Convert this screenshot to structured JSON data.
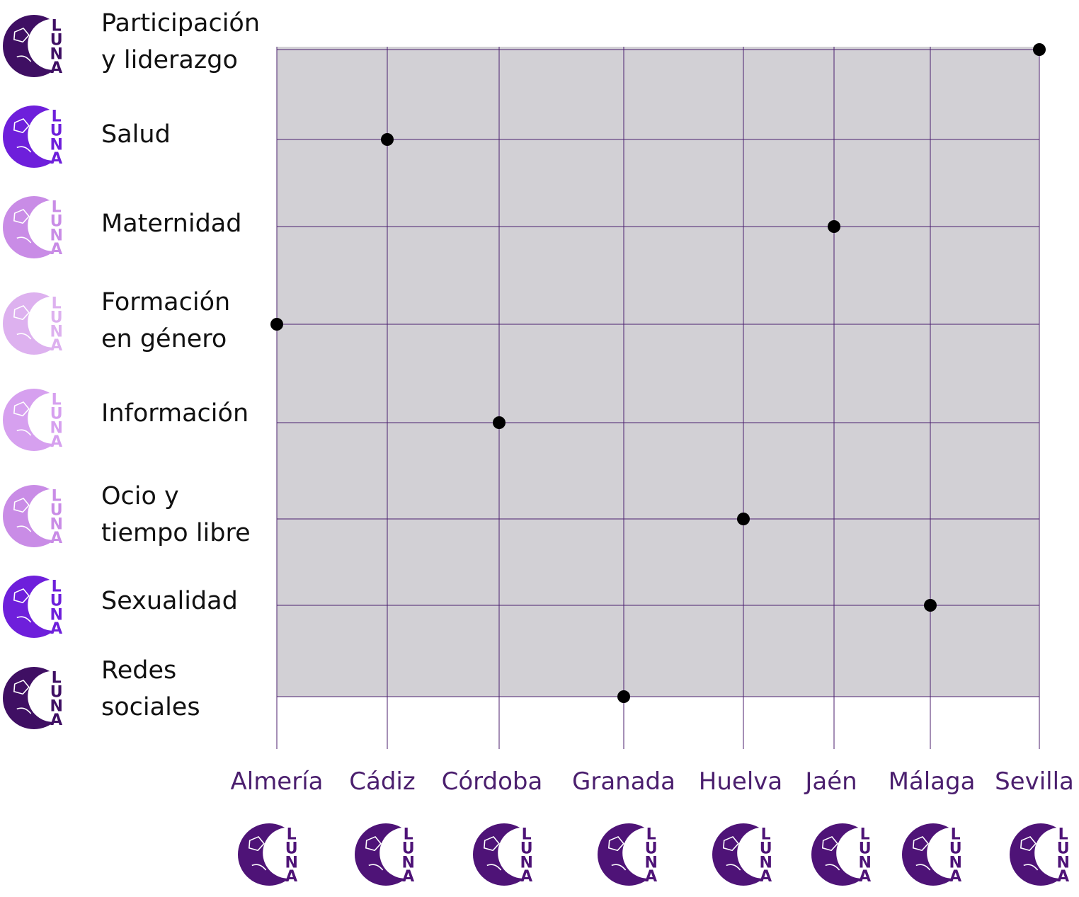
{
  "chart_data": {
    "type": "scatter",
    "title": "",
    "xlabel": "",
    "ylabel": "",
    "x_categories": [
      "Almería",
      "Cádiz",
      "Córdoba",
      "Granada",
      "Huelva",
      "Jaén",
      "Málaga",
      "Sevilla"
    ],
    "y_categories": [
      [
        "Participación",
        "y liderazgo"
      ],
      [
        "Salud"
      ],
      [
        "Maternidad"
      ],
      [
        "Formación",
        "en género"
      ],
      [
        "Información"
      ],
      [
        "Ocio y",
        "tiempo libre"
      ],
      [
        "Sexualidad"
      ],
      [
        "Redes",
        "sociales"
      ]
    ],
    "points": [
      {
        "x": "Sevilla",
        "y": "Participación y liderazgo"
      },
      {
        "x": "Cádiz",
        "y": "Salud"
      },
      {
        "x": "Jaén",
        "y": "Maternidad"
      },
      {
        "x": "Almería",
        "y": "Formación en género"
      },
      {
        "x": "Córdoba",
        "y": "Información"
      },
      {
        "x": "Huelva",
        "y": "Ocio y tiempo libre"
      },
      {
        "x": "Málaga",
        "y": "Sexualidad"
      },
      {
        "x": "Granada",
        "y": "Redes sociales"
      }
    ],
    "grid": true,
    "legend": "none"
  },
  "logo": {
    "letters": [
      "L",
      "U",
      "N",
      "A"
    ]
  },
  "colors": {
    "plot_bg": "#d2d0d5",
    "grid": "#4b1f6e",
    "point": "#000000",
    "column_label": "#4b1f6e",
    "row_logo_colors": [
      "#3f0f63",
      "#6e1fdb",
      "#c98ce6",
      "#ddb1ef",
      "#d6a0ef",
      "#c98ce6",
      "#6e1fdb",
      "#3f0f63"
    ],
    "column_logo_color": "#4e1377"
  },
  "icons": {
    "row_logo": "moon-face-luna-logo-icon",
    "column_logo": "moon-face-luna-logo-icon"
  }
}
